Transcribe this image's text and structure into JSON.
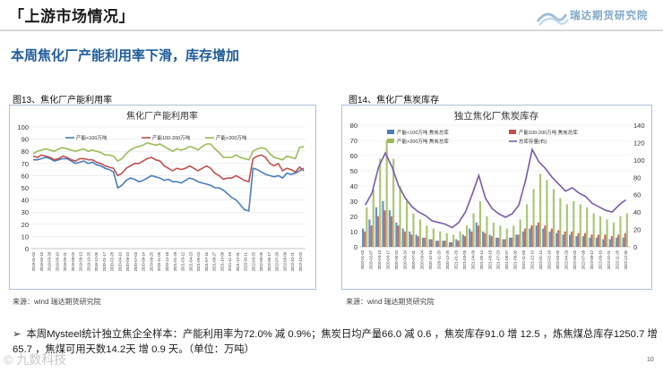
{
  "header": {
    "title": "上游市场情况",
    "bracket_left": "「",
    "bracket_right": "」",
    "logo_text": "瑞达期货研究院"
  },
  "subtitle": "本周焦化厂产能利用率下滑，库存增加",
  "figures": [
    {
      "label": "图13、焦化厂产能利用率",
      "source": "来源：wind   瑞达期货研究院"
    },
    {
      "label": "图14、焦化厂焦炭库存",
      "source": "来源：wind   瑞达期货研究院"
    }
  ],
  "bullet": {
    "mark": "➢",
    "text": "本周Mysteel统计独立焦企全样本：产能利用率为72.0% 减 0.9%；焦炭日均产量66.0 减 0.6 ，焦炭库存91.0 增 12.5 ，炼焦煤总库存1250.7 增 65.7 ，焦煤可用天数14.2天 增 0.9 天。（单位：万吨）"
  },
  "page_number": "10",
  "watermark": "© 九数科技",
  "colors": {
    "title_blue": "#1f5c99",
    "series_blue": "#4a7ebb",
    "series_red": "#c0504d",
    "series_green": "#9bbb59",
    "series_purple": "#7a5aa8",
    "frame": "#a9c1d9"
  },
  "chart_data": [
    {
      "type": "line",
      "title": "焦化厂产能利用率",
      "ylim": [
        0,
        100
      ],
      "yticks": [
        "0",
        "10",
        "20",
        "30",
        "40",
        "50",
        "60",
        "70",
        "80",
        "90",
        "100"
      ],
      "xticks": [
        "2019-01-04",
        "2019-02-15",
        "2019-03-29",
        "2019-05-10",
        "2019-06-21",
        "2019-08-02",
        "2019-09-13",
        "2019-10-25",
        "2019-12-06",
        "2020-01-17",
        "2020-02-28",
        "2020-04-10",
        "2020-05-22",
        "2020-07-03",
        "2020-08-14",
        "2020-09-25",
        "2020-11-06",
        "2020-12-18",
        "2021-01-29",
        "2021-03-12",
        "2021-04-23",
        "2021-06-04",
        "2021-07-16",
        "2021-08-27",
        "2021-10-08",
        "2021-11-19",
        "2021-12-31",
        "2022-02-11",
        "2022-03-25",
        "2022-05-06",
        "2022-06-17",
        "2022-07-29",
        "2022-09-09",
        "2022-10-21",
        "2022-12-02"
      ],
      "series": [
        {
          "name": "产能<100万吨",
          "color": "#4a7ebb",
          "values": [
            73,
            73,
            74,
            75,
            74,
            72,
            73,
            74,
            74,
            72,
            70,
            71,
            72,
            70,
            71,
            69,
            68,
            66,
            65,
            63,
            50,
            52,
            56,
            58,
            57,
            55,
            56,
            58,
            60,
            59,
            58,
            56,
            57,
            55,
            55,
            54,
            56,
            58,
            57,
            55,
            54,
            53,
            52,
            50,
            50,
            48,
            45,
            42,
            40,
            36,
            32,
            31,
            66,
            65,
            63,
            61,
            60,
            59,
            60,
            58,
            62,
            61,
            62,
            64,
            66
          ]
        },
        {
          "name": "产能100-200万吨",
          "color": "#c0504d",
          "values": [
            76,
            75,
            77,
            76,
            75,
            73,
            74,
            76,
            75,
            73,
            72,
            74,
            74,
            73,
            73,
            71,
            70,
            68,
            67,
            66,
            60,
            62,
            66,
            68,
            70,
            70,
            72,
            74,
            75,
            73,
            72,
            68,
            66,
            64,
            66,
            65,
            66,
            68,
            66,
            64,
            66,
            68,
            66,
            62,
            60,
            57,
            58,
            58,
            60,
            58,
            56,
            55,
            74,
            76,
            77,
            75,
            70,
            68,
            70,
            64,
            66,
            65,
            63,
            67,
            64
          ]
        },
        {
          "name": "产能>200万吨",
          "color": "#9bbb59",
          "values": [
            78,
            80,
            81,
            82,
            81,
            80,
            82,
            83,
            82,
            81,
            80,
            81,
            82,
            80,
            81,
            80,
            79,
            77,
            77,
            76,
            72,
            74,
            78,
            81,
            83,
            84,
            85,
            87,
            86,
            85,
            86,
            84,
            82,
            80,
            82,
            81,
            82,
            84,
            83,
            81,
            84,
            86,
            86,
            82,
            79,
            75,
            75,
            75,
            77,
            75,
            74,
            73,
            80,
            82,
            83,
            82,
            78,
            75,
            74,
            73,
            76,
            75,
            74,
            83,
            84
          ]
        }
      ],
      "legend": "top"
    },
    {
      "type": "bar",
      "title": "独立焦化厂焦炭库存",
      "ylim": [
        0,
        80
      ],
      "yticks": [
        "0",
        "10",
        "20",
        "30",
        "40",
        "50",
        "60",
        "70",
        "80"
      ],
      "y2lim": [
        0,
        140
      ],
      "y2ticks": [
        "0",
        "20",
        "40",
        "60",
        "80",
        "100",
        "120",
        "140"
      ],
      "xticks": [
        "2020-01-03",
        "2020-02-07",
        "2020-03-13",
        "2020-04-17",
        "2020-05-22",
        "2020-06-24",
        "2020-07-31",
        "2020-09-04",
        "2020-10-16",
        "2020-11-20",
        "2020-12-25",
        "2021-01-29",
        "2021-03-05",
        "2021-04-09",
        "2021-05-14",
        "2021-06-18",
        "2021-07-23",
        "2021-08-27",
        "2021-09-30",
        "2021-11-05",
        "2021-12-10",
        "2022-01-14",
        "2022-02-18",
        "2022-03-25",
        "2022-04-29",
        "2022-06-02",
        "2022-07-08",
        "2022-08-12",
        "2022-09-16",
        "2022-10-21",
        "2022-11-25",
        "2022-12-30"
      ],
      "series": [
        {
          "name": "产能<100万吨 焦炭总库",
          "color": "#4a7ebb",
          "values": [
            12,
            18,
            26,
            30,
            24,
            16,
            12,
            10,
            8,
            6,
            5,
            4,
            4,
            3,
            5,
            8,
            12,
            16,
            10,
            8,
            6,
            5,
            6,
            8,
            10,
            12,
            14,
            12,
            10,
            9,
            8,
            8,
            7,
            7,
            6,
            6,
            5,
            5,
            6,
            6
          ]
        },
        {
          "name": "产能100-200万吨 焦炭总库",
          "color": "#c0504d",
          "values": [
            10,
            14,
            20,
            24,
            20,
            14,
            10,
            8,
            7,
            6,
            5,
            4,
            4,
            3,
            4,
            7,
            10,
            14,
            9,
            7,
            6,
            5,
            6,
            8,
            12,
            14,
            16,
            14,
            12,
            11,
            10,
            10,
            9,
            9,
            8,
            8,
            8,
            7,
            8,
            9
          ]
        },
        {
          "name": "产能>200万吨 焦炭总库",
          "color": "#9bbb59",
          "values": [
            26,
            38,
            58,
            70,
            58,
            40,
            30,
            22,
            18,
            14,
            12,
            10,
            9,
            8,
            10,
            14,
            22,
            30,
            20,
            16,
            14,
            12,
            14,
            18,
            28,
            38,
            48,
            44,
            38,
            32,
            28,
            30,
            28,
            26,
            22,
            20,
            18,
            16,
            20,
            22
          ]
        },
        {
          "name": "总库存量(右)",
          "color": "#7a5aa8",
          "axis": "right",
          "values": [
            48,
            62,
            92,
            108,
            92,
            70,
            56,
            46,
            40,
            36,
            30,
            28,
            26,
            22,
            28,
            40,
            60,
            82,
            56,
            44,
            38,
            34,
            38,
            48,
            76,
            112,
            98,
            90,
            80,
            72,
            64,
            68,
            62,
            58,
            50,
            46,
            42,
            40,
            48,
            54
          ]
        }
      ],
      "legend": "top"
    }
  ]
}
